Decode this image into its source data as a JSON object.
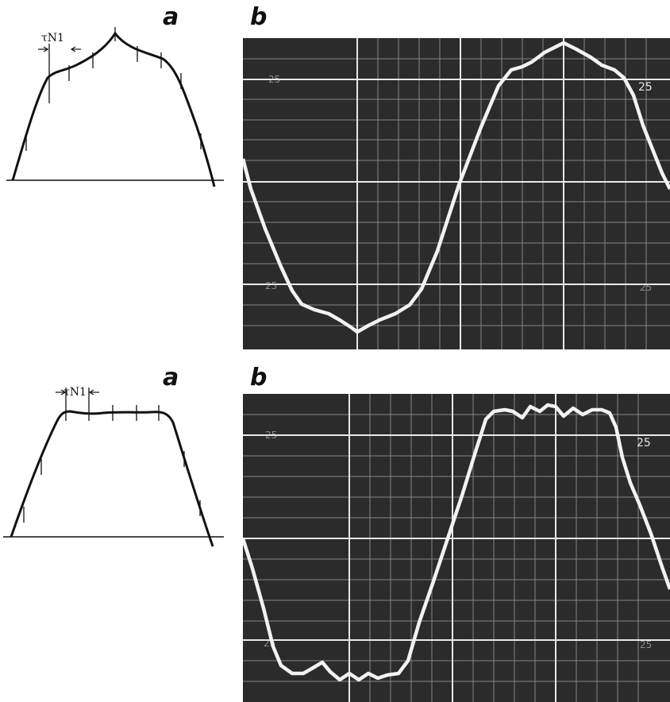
{
  "figure": {
    "top": {
      "label_a": "a",
      "label_b": "b",
      "annotation": "τN1",
      "scope_marks": {
        "upper_left": "25",
        "upper_right": "25",
        "lower_left": "25",
        "lower_right": "25"
      }
    },
    "bottom": {
      "label_a": "a",
      "label_b": "b",
      "annotation": "τN1",
      "scope_marks": {
        "upper_left": "25",
        "upper_right": "25",
        "lower_left": "25",
        "lower_right": "25"
      }
    }
  },
  "colors": {
    "ink": "#111111",
    "screen": "#2b2b2b",
    "grid": "#cfcfcf",
    "trace": "#f2f2f2"
  }
}
